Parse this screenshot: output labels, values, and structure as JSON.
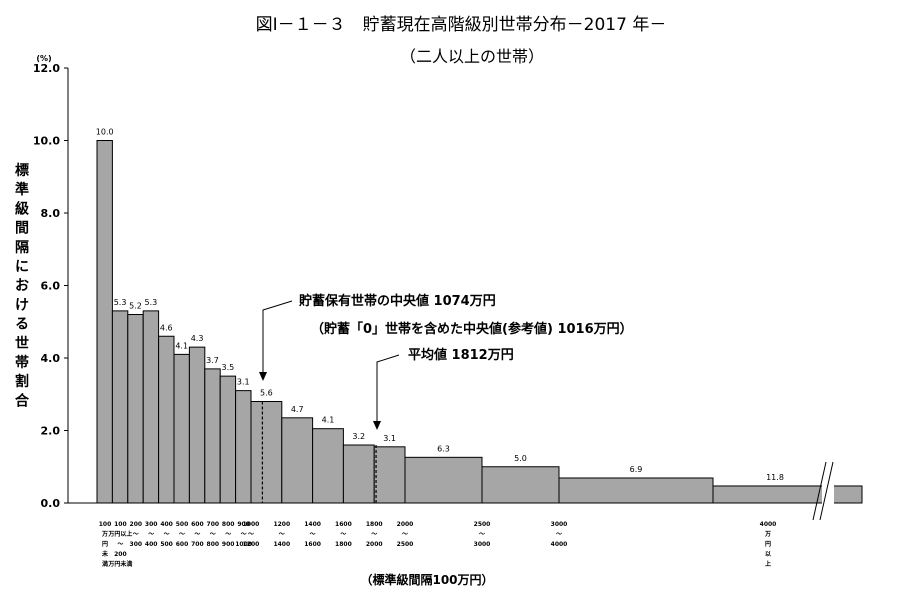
{
  "chart_data": {
    "type": "bar",
    "title": "図Ⅰ－１－３　貯蓄現在高階級別世帯分布－2017 年－",
    "subtitle": "（二人以上の世帯）",
    "ylabel": "標準級間隔における世帯割合",
    "yunit": "(%)",
    "xlabel": "（標準級間隔100万円）",
    "ylim": [
      0,
      12
    ],
    "yticks": [
      "0.0",
      "2.0",
      "4.0",
      "6.0",
      "8.0",
      "10.0",
      "12.0"
    ],
    "categories": [
      [
        "100",
        "万",
        "円",
        "未",
        "満"
      ],
      [
        "100",
        "万円以上",
        "～",
        "200",
        "万円未満"
      ],
      [
        "200",
        "～",
        "300"
      ],
      [
        "300",
        "～",
        "400"
      ],
      [
        "400",
        "～",
        "500"
      ],
      [
        "500",
        "～",
        "600"
      ],
      [
        "600",
        "～",
        "700"
      ],
      [
        "700",
        "～",
        "800"
      ],
      [
        "800",
        "～",
        "900"
      ],
      [
        "900",
        "～",
        "1000"
      ],
      [
        "1000",
        "～",
        "1200"
      ],
      [
        "1200",
        "～",
        "1400"
      ],
      [
        "1400",
        "～",
        "1600"
      ],
      [
        "1600",
        "～",
        "1800"
      ],
      [
        "1800",
        "～",
        "2000"
      ],
      [
        "2000",
        "～",
        "2500"
      ],
      [
        "2500",
        "～",
        "3000"
      ],
      [
        "3000",
        "～",
        "4000"
      ],
      [
        "4000",
        "万",
        "円",
        "以",
        "上"
      ]
    ],
    "data_labels": [
      "10.0",
      "5.3",
      "5.2",
      "5.3",
      "4.6",
      "4.1",
      "4.3",
      "3.7",
      "3.5",
      "3.1",
      "5.6",
      "4.7",
      "4.1",
      "3.2",
      "3.1",
      "6.3",
      "5.0",
      "6.9",
      "11.8"
    ],
    "bar_heights": [
      10.0,
      5.3,
      5.2,
      5.3,
      4.6,
      4.1,
      4.3,
      3.7,
      3.5,
      3.1,
      2.8,
      2.35,
      2.05,
      1.6,
      1.55,
      1.26,
      1.0,
      0.69,
      0.47
    ],
    "bar_widths": [
      1,
      1,
      1,
      1,
      1,
      1,
      1,
      1,
      1,
      1,
      2,
      2,
      2,
      2,
      2,
      5,
      5,
      10,
      10
    ],
    "annotations": {
      "median_line1": "貯蓄保有世帯の中央値 1074万円",
      "median_line2": "（貯蓄「0」世帯を含めた中央値(参考値) 1016万円）",
      "median_value": 1074,
      "mean_text": "平均値 1812万円",
      "mean_value": 1812
    },
    "axis_break": true
  }
}
